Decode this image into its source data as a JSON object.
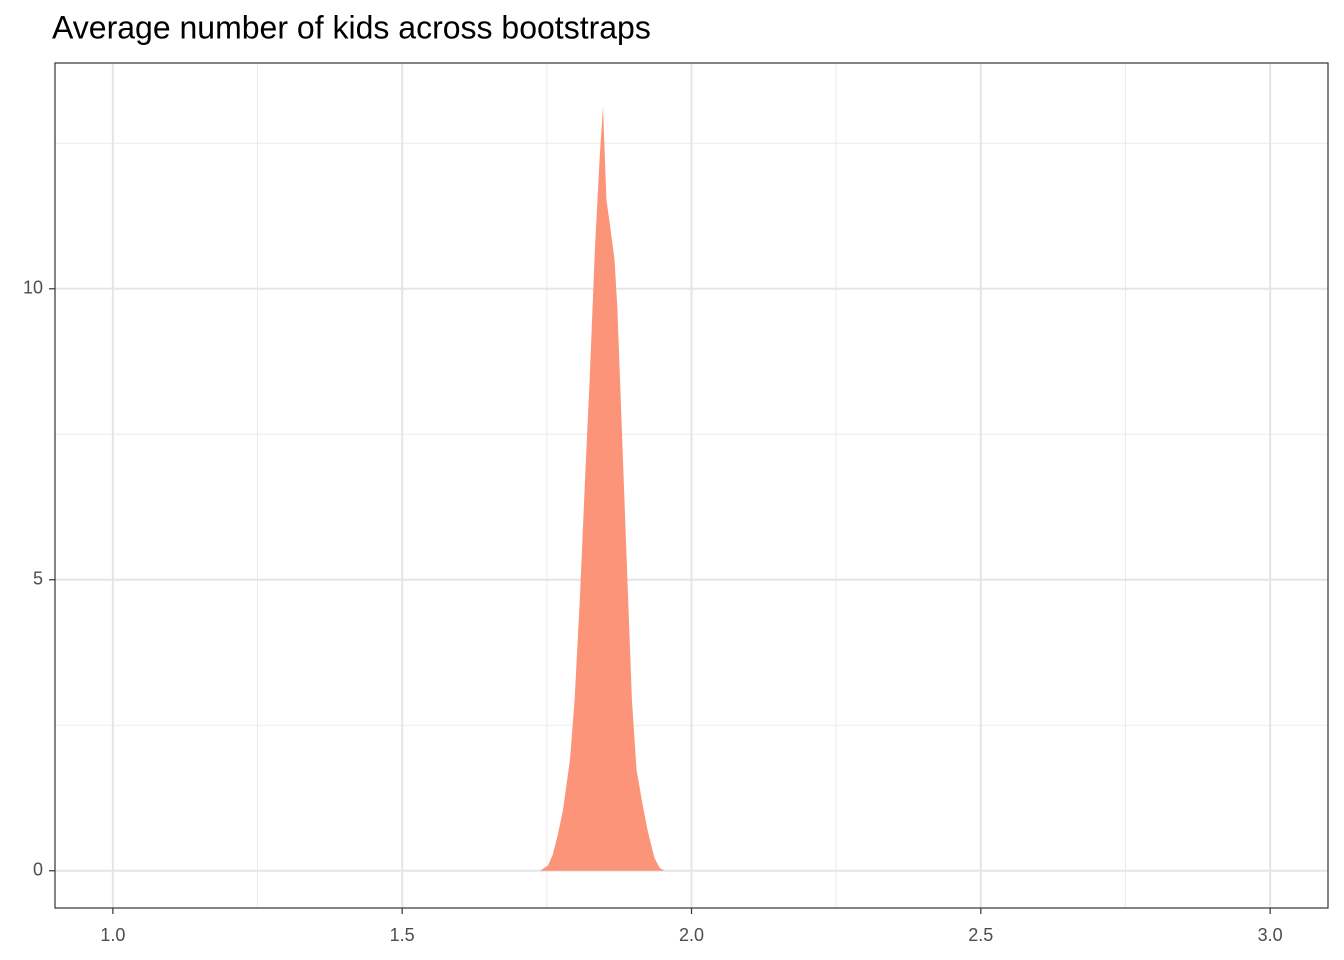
{
  "chart_data": {
    "type": "area",
    "title": "Average number of kids across bootstraps",
    "x": [
      1.738,
      1.752,
      1.76,
      1.769,
      1.778,
      1.79,
      1.798,
      1.807,
      1.816,
      1.824,
      1.833,
      1.841,
      1.847,
      1.853,
      1.859,
      1.867,
      1.872,
      1.879,
      1.888,
      1.897,
      1.905,
      1.914,
      1.924,
      1.936,
      1.945,
      1.953
    ],
    "values": [
      0,
      0.09,
      0.27,
      0.62,
      1.05,
      1.91,
      2.94,
      4.66,
      6.72,
      8.44,
      10.67,
      12.2,
      13.13,
      11.53,
      11.1,
      10.5,
      9.64,
      7.75,
      5.34,
      2.94,
      1.74,
      1.22,
      0.7,
      0.22,
      0.05,
      0
    ],
    "color": "#fb9478",
    "xlim": [
      0.9,
      3.1
    ],
    "xticks": [
      {
        "value": 1,
        "label": "1.0"
      },
      1.5,
      {
        "value": 2,
        "label": "2.0"
      },
      2.5,
      {
        "value": 3,
        "label": "3.0"
      }
    ],
    "xminor": [
      1.25,
      1.75,
      2.25,
      2.75
    ],
    "ylim": [
      -0.64,
      13.88
    ],
    "yticks": [
      0,
      5,
      10
    ],
    "yminor": [
      2.5,
      7.5,
      12.5
    ],
    "grid": true
  }
}
